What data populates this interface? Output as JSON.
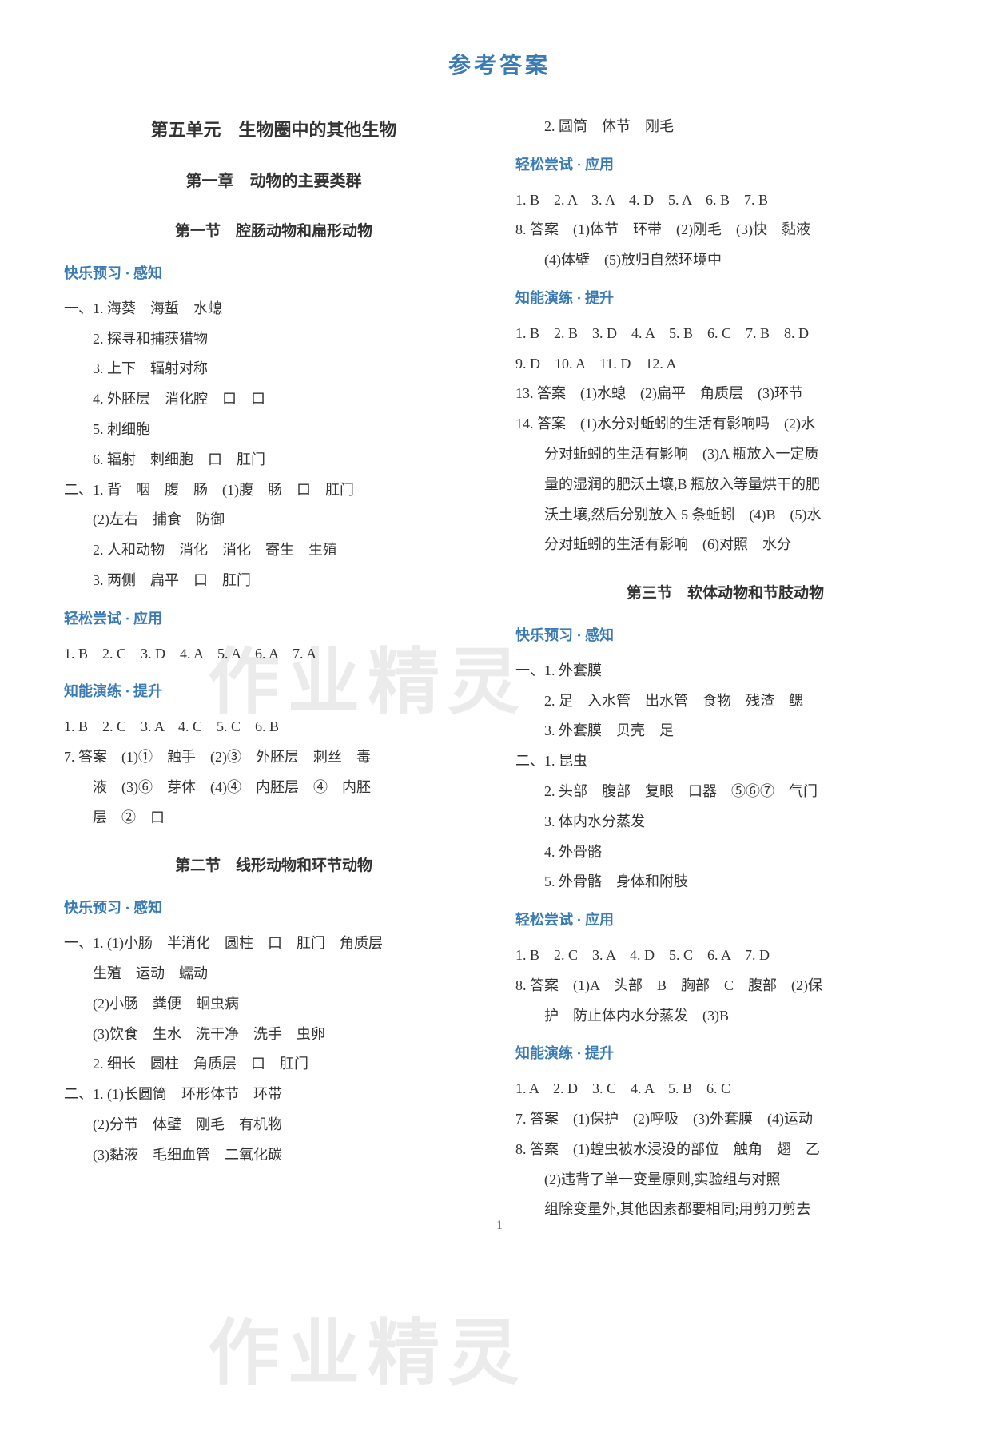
{
  "pageTitle": "参考答案",
  "watermark": "作业精灵",
  "pageNum": "1",
  "left": {
    "unit": "第五单元　生物圈中的其他生物",
    "chapter": "第一章　动物的主要类群",
    "sec1": {
      "title": "第一节　腔肠动物和扁形动物",
      "h1": "快乐预习 · 感知",
      "p1": "一、1. 海葵　海蜇　水螅",
      "p2": "2. 探寻和捕获猎物",
      "p3": "3. 上下　辐射对称",
      "p4": "4. 外胚层　消化腔　口　口",
      "p5": "5. 刺细胞",
      "p6": "6. 辐射　刺细胞　口　肛门",
      "p7": "二、1. 背　咽　腹　肠　(1)腹　肠　口　肛门",
      "p8": "(2)左右　捕食　防御",
      "p9": "2. 人和动物　消化　消化　寄生　生殖",
      "p10": "3. 两侧　扁平　口　肛门",
      "h2": "轻松尝试 · 应用",
      "p11": "1. B　2. C　3. D　4. A　5. A　6. A　7. A",
      "h3": "知能演练 · 提升",
      "p12": "1. B　2. C　3. A　4. C　5. C　6. B",
      "p13": "7. 答案　(1)①　触手　(2)③　外胚层　刺丝　毒",
      "p14": "液　(3)⑥　芽体　(4)④　内胚层　④　内胚",
      "p15": "层　②　口"
    },
    "sec2": {
      "title": "第二节　线形动物和环节动物",
      "h1": "快乐预习 · 感知",
      "p1": "一、1. (1)小肠　半消化　圆柱　口　肛门　角质层",
      "p2": "生殖　运动　蠕动",
      "p3": "(2)小肠　粪便　蛔虫病",
      "p4": "(3)饮食　生水　洗干净　洗手　虫卵",
      "p5": "2. 细长　圆柱　角质层　口　肛门",
      "p6": "二、1. (1)长圆筒　环形体节　环带",
      "p7": "(2)分节　体壁　刚毛　有机物",
      "p8": "(3)黏液　毛细血管　二氧化碳"
    }
  },
  "right": {
    "p0": "2. 圆筒　体节　刚毛",
    "h1": "轻松尝试 · 应用",
    "p1": "1. B　2. A　3. A　4. D　5. A　6. B　7. B",
    "p2": "8. 答案　(1)体节　环带　(2)刚毛　(3)快　黏液",
    "p3": "(4)体壁　(5)放归自然环境中",
    "h2": "知能演练 · 提升",
    "p4": "1. B　2. B　3. D　4. A　5. B　6. C　7. B　8. D",
    "p5": "9. D　10. A　11. D　12. A",
    "p6": "13. 答案　(1)水螅　(2)扁平　角质层　(3)环节",
    "p7": "14. 答案　(1)水分对蚯蚓的生活有影响吗　(2)水",
    "p8": "分对蚯蚓的生活有影响　(3)A 瓶放入一定质",
    "p9": "量的湿润的肥沃土壤,B 瓶放入等量烘干的肥",
    "p10": "沃土壤,然后分别放入 5 条蚯蚓　(4)B　(5)水",
    "p11": "分对蚯蚓的生活有影响　(6)对照　水分",
    "sec3": {
      "title": "第三节　软体动物和节肢动物",
      "h1": "快乐预习 · 感知",
      "p1": "一、1. 外套膜",
      "p2": "2. 足　入水管　出水管　食物　残渣　鳃",
      "p3": "3. 外套膜　贝壳　足",
      "p4": "二、1. 昆虫",
      "p5": "2. 头部　腹部　复眼　口器　⑤⑥⑦　气门",
      "p6": "3. 体内水分蒸发",
      "p7": "4. 外骨骼",
      "p8": "5. 外骨骼　身体和附肢",
      "h2": "轻松尝试 · 应用",
      "p9": "1. B　2. C　3. A　4. D　5. C　6. A　7. D",
      "p10": "8. 答案　(1)A　头部　B　胸部　C　腹部　(2)保",
      "p11": "护　防止体内水分蒸发　(3)B",
      "h3": "知能演练 · 提升",
      "p12": "1. A　2. D　3. C　4. A　5. B　6. C",
      "p13": "7. 答案　(1)保护　(2)呼吸　(3)外套膜　(4)运动",
      "p14": "8. 答案　(1)蝗虫被水浸没的部位　触角　翅　乙",
      "p15": "(2)违背了单一变量原则,实验组与对照",
      "p16": "组除变量外,其他因素都要相同;用剪刀剪去"
    }
  }
}
